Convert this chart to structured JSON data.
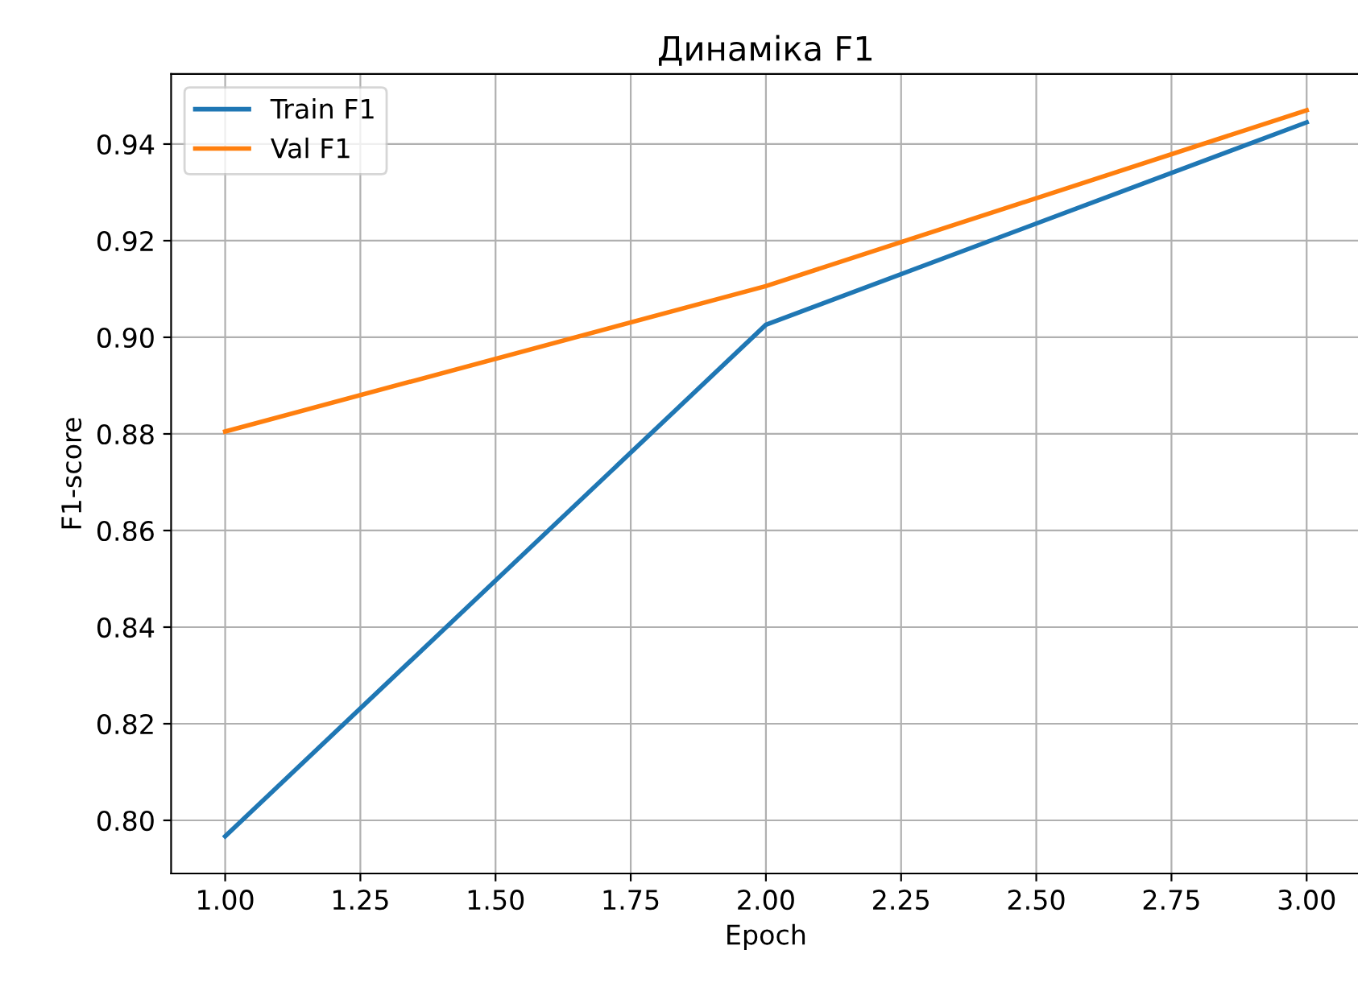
{
  "chart_data": {
    "type": "line",
    "title": "Динаміка F1",
    "xlabel": "Epoch",
    "ylabel": "F1-score",
    "x": [
      1,
      2,
      3
    ],
    "series": [
      {
        "name": "Train F1",
        "color": "#1f77b4",
        "values": [
          0.7967,
          0.9026,
          0.9445
        ]
      },
      {
        "name": "Val F1",
        "color": "#ff7f0e",
        "values": [
          0.8805,
          0.9106,
          0.947
        ]
      }
    ],
    "xlim": [
      0.9,
      3.1
    ],
    "xticks": [
      {
        "value": 1,
        "label": "1.00"
      },
      {
        "value": 1.25,
        "label": "1.25"
      },
      {
        "value": 1.5,
        "label": "1.50"
      },
      {
        "value": 1.75,
        "label": "1.75"
      },
      {
        "value": 2,
        "label": "2.00"
      },
      {
        "value": 2.25,
        "label": "2.25"
      },
      {
        "value": 2.5,
        "label": "2.50"
      },
      {
        "value": 2.75,
        "label": "2.75"
      },
      {
        "value": 3,
        "label": "3.00"
      }
    ],
    "ylim": [
      0.789,
      0.9545
    ],
    "yticks": [
      {
        "value": 0.8,
        "label": "0.80"
      },
      {
        "value": 0.82,
        "label": "0.82"
      },
      {
        "value": 0.84,
        "label": "0.84"
      },
      {
        "value": 0.86,
        "label": "0.86"
      },
      {
        "value": 0.88,
        "label": "0.88"
      },
      {
        "value": 0.9,
        "label": "0.90"
      },
      {
        "value": 0.92,
        "label": "0.92"
      },
      {
        "value": 0.94,
        "label": "0.94"
      }
    ],
    "grid": true,
    "legend": "top left",
    "marker": "none",
    "line_style": "solid"
  }
}
